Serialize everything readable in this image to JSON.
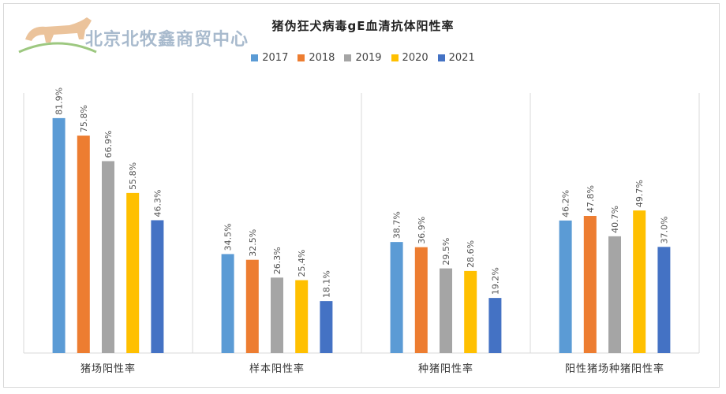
{
  "watermark": {
    "text": "北京北牧鑫商贸中心"
  },
  "chart_data": {
    "type": "bar",
    "title": "猪伪狂犬病毒gE血清抗体阳性率",
    "categories": [
      "猪场阳性率",
      "样本阳性率",
      "种猪阳性率",
      "阳性猪场种猪阳性率"
    ],
    "series": [
      {
        "name": "2017",
        "color": "#5B9BD5",
        "values": [
          81.9,
          34.5,
          38.7,
          46.2
        ],
        "labels": [
          "81.9%",
          "34.5%",
          "38.7%",
          "46.2%"
        ]
      },
      {
        "name": "2018",
        "color": "#ED7D31",
        "values": [
          75.8,
          32.5,
          36.9,
          47.8
        ],
        "labels": [
          "75.8%",
          "32.5%",
          "36.9%",
          "47.8%"
        ]
      },
      {
        "name": "2019",
        "color": "#A5A5A5",
        "values": [
          66.9,
          26.3,
          29.5,
          40.7
        ],
        "labels": [
          "66.9%",
          "26.3%",
          "29.5%",
          "40.7%"
        ]
      },
      {
        "name": "2020",
        "color": "#FFC000",
        "values": [
          55.8,
          25.4,
          28.6,
          49.7
        ],
        "labels": [
          "55.8%",
          "25.4%",
          "28.6%",
          "49.7%"
        ]
      },
      {
        "name": "2021",
        "color": "#4472C4",
        "values": [
          46.3,
          18.1,
          19.2,
          37.0
        ],
        "labels": [
          "46.3%",
          "18.1%",
          "19.2%",
          "37.0%"
        ]
      }
    ],
    "ylim": [
      0,
      100
    ],
    "grid": false,
    "legend_position": "top-center"
  }
}
